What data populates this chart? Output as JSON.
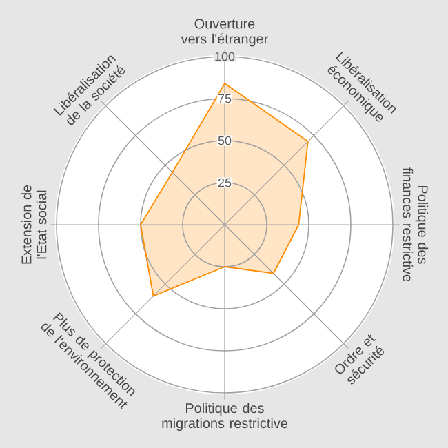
{
  "chart_data": {
    "type": "radar",
    "categories": [
      "Ouverture vers l'étranger",
      "Libéralisation économique",
      "Politique des finances restrictive",
      "Ordre et sécurité",
      "Politique des migrations restrictive",
      "Plus de protection de l'environnement",
      "Extension de l'Etat social",
      "Libéralisation de la société"
    ],
    "series": [
      {
        "color": "#ff8c00",
        "values": [
          84,
          70,
          44,
          41,
          25,
          60,
          50,
          44
        ]
      }
    ],
    "ylim": [
      0,
      100
    ],
    "yticks": [
      25,
      50,
      75,
      100
    ],
    "grid": true
  }
}
